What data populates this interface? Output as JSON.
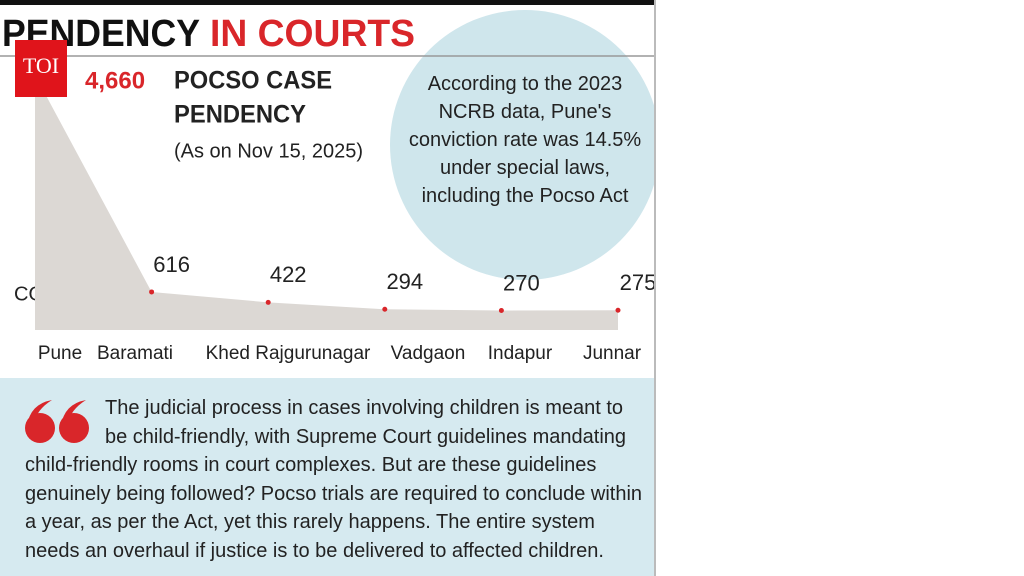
{
  "header": {
    "title_black": "PENDENCY",
    "title_red": "IN COURTS",
    "logo": "TOI"
  },
  "chart_data": {
    "type": "area",
    "title": "POCSO CASE",
    "title_line2": "PENDENCY",
    "subtitle": "(As on Nov 15, 2025)",
    "x_label": "COURT",
    "categories": [
      "Pune",
      "Baramati",
      "Khed Rajgurunagar",
      "Vadgaon",
      "Indapur",
      "Junnar"
    ],
    "values": [
      4660,
      616,
      422,
      294,
      270,
      275
    ],
    "value_labels": [
      "4,660",
      "616",
      "422",
      "294",
      "270",
      "275"
    ],
    "color": "#dcd8d4",
    "marker_color": "#d9262a",
    "annotation": "According to the 2023 NCRB data, Pune's conviction rate was 14.5% under special laws, including the Pocso Act"
  },
  "quote": {
    "text": "The judicial process in cases involving children is meant to be child-friendly, with Supreme Court guidelines mandating child-friendly rooms in court complexes. But are these guidelines genuinely being followed? Pocso trials are required to conclude within a year, as per the Act, yet this rarely happens. The entire system needs an overhaul if justice is to be delivered to affected children."
  }
}
